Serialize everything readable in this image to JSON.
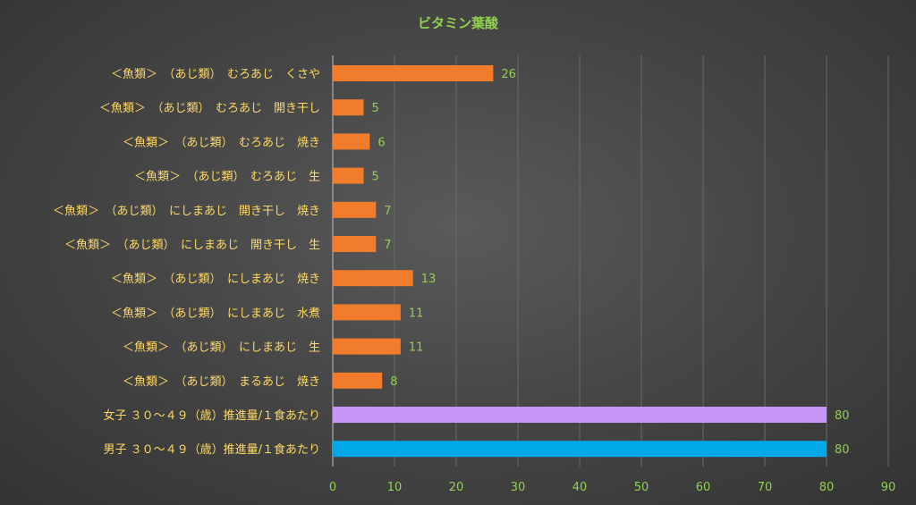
{
  "colors": {
    "title": "#92d050",
    "category_text": "#ffd966",
    "tick_text": "#92d050",
    "data_label": "#92d050",
    "grid": "#6a6a6a",
    "axis": "#bfbfbf",
    "food_bar": "#f07c2c",
    "female_bar": "#c896f8",
    "male_bar": "#00a8e8"
  },
  "chart_data": {
    "type": "bar",
    "orientation": "horizontal",
    "title": "ビタミン葉酸",
    "xlabel": "",
    "ylabel": "",
    "xlim": [
      0,
      90
    ],
    "ticks": [
      0,
      10,
      20,
      30,
      40,
      50,
      60,
      70,
      80,
      90
    ],
    "grid": true,
    "legend": "none",
    "categories": [
      "＜魚類＞　（あじ類）　むろあじ　くさや",
      "＜魚類＞　（あじ類）　むろあじ　開き干し",
      "＜魚類＞　（あじ類）　むろあじ　焼き",
      "＜魚類＞　（あじ類）　むろあじ　生",
      "＜魚類＞　（あじ類）　にしまあじ　開き干し　焼き",
      "＜魚類＞　（あじ類）　にしまあじ　開き干し　生",
      "＜魚類＞　（あじ類）　にしまあじ　焼き",
      "＜魚類＞　（あじ類）　にしまあじ　水煮",
      "＜魚類＞　（あじ類）　にしまあじ　生",
      "＜魚類＞　（あじ類）　まるあじ　焼き",
      "女子 ３０～４９（歳）推進量/１食あたり",
      "男子 ３０～４９（歳）推進量/１食あたり"
    ],
    "values": [
      26,
      5,
      6,
      5,
      7,
      7,
      13,
      11,
      11,
      8,
      80,
      80
    ],
    "bar_colors": [
      "food_bar",
      "food_bar",
      "food_bar",
      "food_bar",
      "food_bar",
      "food_bar",
      "food_bar",
      "food_bar",
      "food_bar",
      "food_bar",
      "female_bar",
      "male_bar"
    ],
    "data_labels": true
  }
}
